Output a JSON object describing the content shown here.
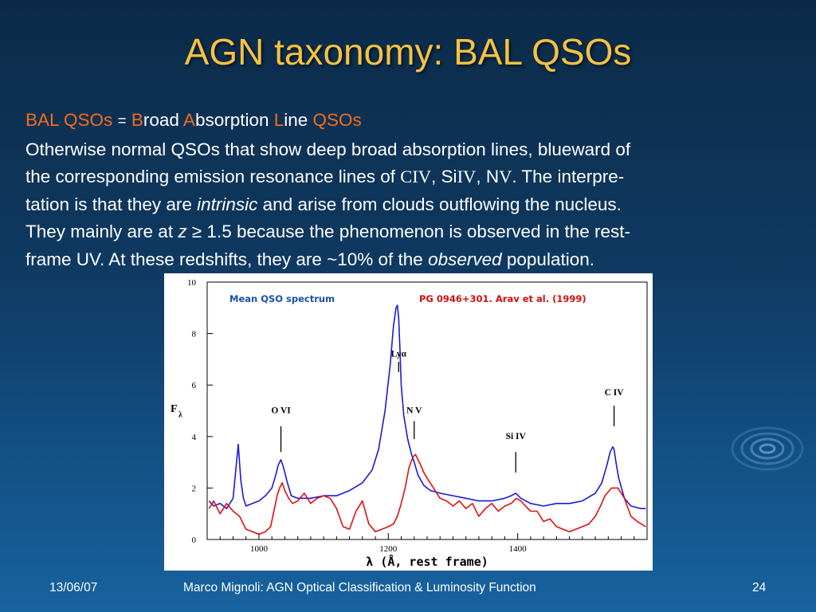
{
  "slide": {
    "title": "AGN taxonomy: BAL QSOs",
    "definition": {
      "term": "BAL QSOs",
      "equals": "=",
      "b": "B",
      "b_rest": "road ",
      "a": "A",
      "a_rest": "bsorption ",
      "l": "L",
      "l_rest": "ine ",
      "q": "QSOs"
    },
    "paragraph": {
      "l1": "Otherwise normal QSOs that show deep broad absorption lines, blueward of",
      "l2a": "the corresponding emission resonance lines of ",
      "l2_c": "C",
      "l2_civ": "IV",
      "l2_c2": ", Si",
      "l2_siiv": "IV",
      "l2_c3": ", N",
      "l2_nv": "V",
      "l2b": ". The interpre-",
      "l3a": "tation is that they are ",
      "l3_em": "intrinsic",
      "l3b": " and arise from clouds outflowing the nucleus.",
      "l4a": "They mainly are at ",
      "l4_z": "z",
      "l4b": " ≥ 1.5 because the phenomenon is observed in the rest-",
      "l5a": "frame UV. At these redshifts, they are ~10% of the ",
      "l5_em": "observed",
      "l5b": " population."
    }
  },
  "footer": {
    "date": "13/06/07",
    "center": "Marco Mignoli: AGN Optical Classification & Luminosity Function",
    "page": "24"
  },
  "chart_data": {
    "type": "line",
    "xlabel": "λ (Å, rest frame)",
    "ylabel": "F",
    "ylabel_sub": "λ",
    "xlim": [
      920,
      1600
    ],
    "ylim": [
      0,
      10
    ],
    "xticks": [
      1000,
      1200,
      1400
    ],
    "yticks": [
      0,
      2,
      4,
      6,
      8,
      10
    ],
    "colors": {
      "blue": "#1a1ad6",
      "red": "#e01010",
      "blue_label": "#1a4fb0",
      "red_label": "#d01010"
    },
    "legend_blue": "Mean QSO spectrum",
    "legend_red": "PG 0946+301. Arav et al. (1999)",
    "annotations": [
      {
        "text": "O VI",
        "x": 1034,
        "y": 4.9,
        "tick_y": [
          3.4,
          4.4
        ]
      },
      {
        "text": "Lyα",
        "x": 1216,
        "y": 7.1,
        "tick_y": [
          6.5,
          6.9
        ]
      },
      {
        "text": "N V",
        "x": 1240,
        "y": 4.9,
        "tick_y": [
          3.9,
          4.6
        ]
      },
      {
        "text": "Si IV",
        "x": 1397,
        "y": 3.9,
        "tick_y": [
          2.6,
          3.4
        ]
      },
      {
        "text": "C IV",
        "x": 1549,
        "y": 5.6,
        "tick_y": [
          4.4,
          5.2
        ]
      }
    ],
    "series": [
      {
        "name": "Mean QSO spectrum",
        "color": "#1a1ad6",
        "x": [
          923,
          930,
          940,
          950,
          960,
          968,
          972,
          976,
          980,
          990,
          1000,
          1010,
          1020,
          1026,
          1030,
          1034,
          1038,
          1044,
          1050,
          1060,
          1080,
          1100,
          1120,
          1140,
          1160,
          1175,
          1185,
          1195,
          1203,
          1208,
          1212,
          1214,
          1216,
          1218,
          1220,
          1224,
          1230,
          1236,
          1240,
          1246,
          1255,
          1265,
          1280,
          1300,
          1320,
          1340,
          1360,
          1380,
          1390,
          1397,
          1405,
          1420,
          1440,
          1460,
          1480,
          1500,
          1520,
          1530,
          1538,
          1543,
          1547,
          1549,
          1552,
          1556,
          1565,
          1575,
          1590,
          1598
        ],
        "y": [
          1.5,
          1.3,
          1.4,
          1.2,
          1.6,
          3.7,
          2.3,
          1.6,
          1.3,
          1.4,
          1.5,
          1.7,
          2.0,
          2.5,
          2.9,
          3.1,
          2.8,
          2.2,
          1.7,
          1.6,
          1.6,
          1.7,
          1.7,
          1.9,
          2.2,
          2.7,
          3.5,
          5.0,
          6.8,
          8.3,
          9.0,
          9.1,
          8.6,
          7.4,
          6.0,
          4.8,
          3.9,
          3.3,
          3.0,
          2.5,
          2.1,
          1.9,
          1.8,
          1.7,
          1.6,
          1.5,
          1.5,
          1.6,
          1.7,
          1.8,
          1.6,
          1.4,
          1.3,
          1.4,
          1.4,
          1.5,
          1.8,
          2.2,
          2.9,
          3.4,
          3.6,
          3.5,
          3.0,
          2.4,
          1.6,
          1.3,
          1.2,
          1.2
        ]
      },
      {
        "name": "PG 0946+301. Arav et al. (1999)",
        "color": "#e01010",
        "x": [
          923,
          930,
          940,
          950,
          960,
          970,
          980,
          990,
          1000,
          1010,
          1018,
          1024,
          1028,
          1032,
          1036,
          1040,
          1046,
          1052,
          1060,
          1070,
          1080,
          1090,
          1100,
          1110,
          1120,
          1130,
          1140,
          1150,
          1160,
          1170,
          1180,
          1190,
          1200,
          1208,
          1214,
          1220,
          1226,
          1232,
          1238,
          1242,
          1248,
          1255,
          1262,
          1270,
          1280,
          1290,
          1300,
          1310,
          1320,
          1330,
          1340,
          1350,
          1360,
          1370,
          1380,
          1390,
          1398,
          1405,
          1412,
          1420,
          1430,
          1440,
          1450,
          1460,
          1470,
          1480,
          1490,
          1500,
          1510,
          1520,
          1528,
          1535,
          1545,
          1555,
          1565,
          1575,
          1585,
          1598
        ],
        "y": [
          1.2,
          1.5,
          1.0,
          1.4,
          1.1,
          0.9,
          0.4,
          0.3,
          0.2,
          0.3,
          0.5,
          1.2,
          1.7,
          2.0,
          2.2,
          1.9,
          1.6,
          1.4,
          1.5,
          1.8,
          1.4,
          1.6,
          1.7,
          1.6,
          1.2,
          0.5,
          0.4,
          1.1,
          1.5,
          0.6,
          0.3,
          0.4,
          0.5,
          0.6,
          0.9,
          1.4,
          2.0,
          2.8,
          3.2,
          3.3,
          3.0,
          2.6,
          2.3,
          2.0,
          1.6,
          1.5,
          1.3,
          1.5,
          1.2,
          1.4,
          0.9,
          1.2,
          1.4,
          1.1,
          1.3,
          1.4,
          1.6,
          1.5,
          1.3,
          1.1,
          1.1,
          0.7,
          0.8,
          0.5,
          0.4,
          0.3,
          0.4,
          0.5,
          0.6,
          0.9,
          1.3,
          1.7,
          2.0,
          2.0,
          1.6,
          0.9,
          0.7,
          0.5
        ]
      }
    ]
  }
}
